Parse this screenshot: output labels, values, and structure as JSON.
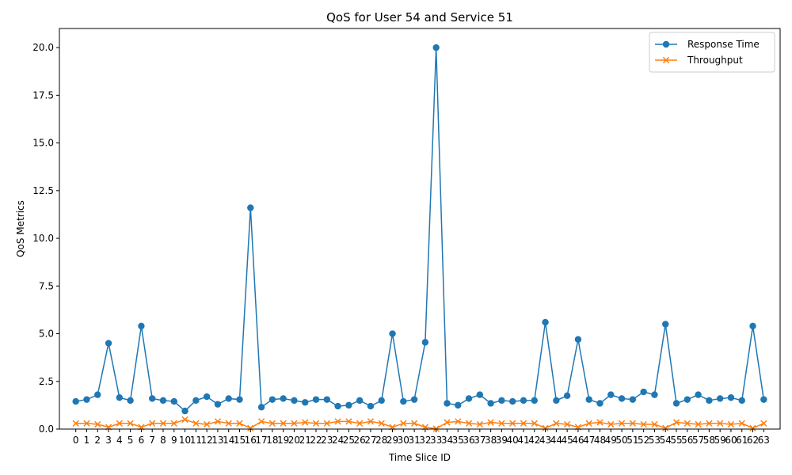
{
  "chart_data": {
    "type": "line",
    "title": "QoS for User 54 and Service 51",
    "xlabel": "Time Slice ID",
    "ylabel": "QoS Metrics",
    "ylim": [
      0,
      21
    ],
    "xlim": [
      -1.5,
      64.5
    ],
    "grid": false,
    "legend_position": "top-right",
    "x": [
      0,
      1,
      2,
      3,
      4,
      5,
      6,
      7,
      8,
      9,
      10,
      11,
      12,
      13,
      14,
      15,
      16,
      17,
      18,
      19,
      20,
      21,
      22,
      23,
      24,
      25,
      26,
      27,
      28,
      29,
      30,
      31,
      32,
      33,
      34,
      35,
      36,
      37,
      38,
      39,
      40,
      41,
      42,
      43,
      44,
      45,
      46,
      47,
      48,
      49,
      50,
      51,
      52,
      53,
      54,
      55,
      56,
      57,
      58,
      59,
      60,
      61,
      62,
      63
    ],
    "yticks": [
      0.0,
      2.5,
      5.0,
      7.5,
      10.0,
      12.5,
      15.0,
      17.5,
      20.0
    ],
    "ytick_labels": [
      "0.0",
      "2.5",
      "5.0",
      "7.5",
      "10.0",
      "12.5",
      "15.0",
      "17.5",
      "20.0"
    ],
    "series": [
      {
        "name": "Response Time",
        "color": "#1f77b4",
        "marker": "circle",
        "values": [
          1.45,
          1.55,
          1.8,
          4.5,
          1.65,
          1.5,
          5.4,
          1.6,
          1.5,
          1.45,
          0.95,
          1.5,
          1.7,
          1.3,
          1.6,
          1.55,
          11.6,
          1.15,
          1.55,
          1.6,
          1.5,
          1.4,
          1.55,
          1.55,
          1.2,
          1.25,
          1.5,
          1.2,
          1.5,
          5.0,
          1.45,
          1.55,
          4.55,
          20.0,
          1.35,
          1.25,
          1.6,
          1.8,
          1.35,
          1.5,
          1.45,
          1.5,
          1.5,
          5.6,
          1.5,
          1.75,
          4.7,
          1.55,
          1.35,
          1.8,
          1.6,
          1.55,
          1.95,
          1.8,
          5.5,
          1.35,
          1.55,
          1.8,
          1.5,
          1.6,
          1.65,
          1.5,
          5.4,
          1.55
        ]
      },
      {
        "name": "Throughput",
        "color": "#ff7f0e",
        "marker": "x",
        "values": [
          0.3,
          0.3,
          0.25,
          0.1,
          0.3,
          0.3,
          0.1,
          0.3,
          0.3,
          0.3,
          0.5,
          0.3,
          0.25,
          0.4,
          0.3,
          0.3,
          0.05,
          0.4,
          0.3,
          0.3,
          0.3,
          0.35,
          0.3,
          0.3,
          0.4,
          0.4,
          0.3,
          0.4,
          0.3,
          0.1,
          0.3,
          0.3,
          0.1,
          0.02,
          0.35,
          0.4,
          0.3,
          0.25,
          0.35,
          0.3,
          0.3,
          0.3,
          0.3,
          0.05,
          0.3,
          0.25,
          0.1,
          0.3,
          0.35,
          0.25,
          0.3,
          0.3,
          0.25,
          0.25,
          0.05,
          0.35,
          0.3,
          0.25,
          0.3,
          0.3,
          0.25,
          0.3,
          0.05,
          0.3
        ]
      }
    ]
  }
}
